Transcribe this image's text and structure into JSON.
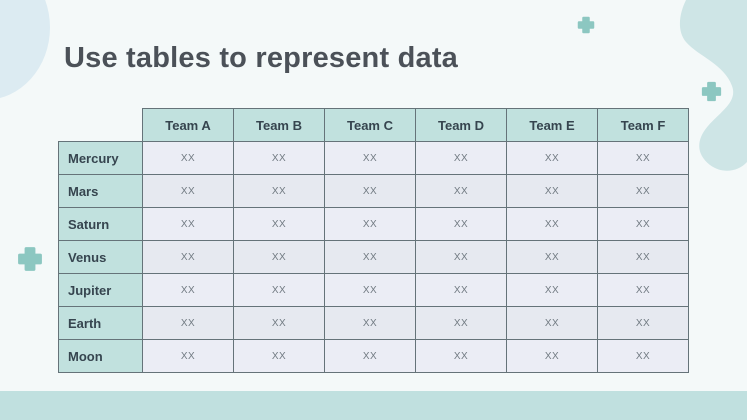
{
  "slide": {
    "title": "Use tables to represent data"
  },
  "table": {
    "columns": [
      "Team A",
      "Team B",
      "Team C",
      "Team D",
      "Team E",
      "Team F"
    ],
    "rows": [
      {
        "label": "Mercury",
        "cells": [
          "XX",
          "XX",
          "XX",
          "XX",
          "XX",
          "XX"
        ]
      },
      {
        "label": "Mars",
        "cells": [
          "XX",
          "XX",
          "XX",
          "XX",
          "XX",
          "XX"
        ]
      },
      {
        "label": "Saturn",
        "cells": [
          "XX",
          "XX",
          "XX",
          "XX",
          "XX",
          "XX"
        ]
      },
      {
        "label": "Venus",
        "cells": [
          "XX",
          "XX",
          "XX",
          "XX",
          "XX",
          "XX"
        ]
      },
      {
        "label": "Jupiter",
        "cells": [
          "XX",
          "XX",
          "XX",
          "XX",
          "XX",
          "XX"
        ]
      },
      {
        "label": "Earth",
        "cells": [
          "XX",
          "XX",
          "XX",
          "XX",
          "XX",
          "XX"
        ]
      },
      {
        "label": "Moon",
        "cells": [
          "XX",
          "XX",
          "XX",
          "XX",
          "XX",
          "XX"
        ]
      }
    ]
  },
  "icons": [
    "plus-icon-top",
    "plus-icon-right",
    "plus-icon-left"
  ],
  "colors": {
    "background": "#f4f9f9",
    "footer-bar": "#c0e0df",
    "header-fill": "#c1e1de",
    "cell-fill": "#ebedf5",
    "cell-fill-alt": "#e6e9f0",
    "border": "#657379",
    "header-text": "#36454f",
    "cell-text": "#717a82",
    "title-color": "#4b5158",
    "accent-teal": "#8cc7c1",
    "blob-blue": "#dcebf2",
    "blob-teal": "#cee5e6"
  }
}
